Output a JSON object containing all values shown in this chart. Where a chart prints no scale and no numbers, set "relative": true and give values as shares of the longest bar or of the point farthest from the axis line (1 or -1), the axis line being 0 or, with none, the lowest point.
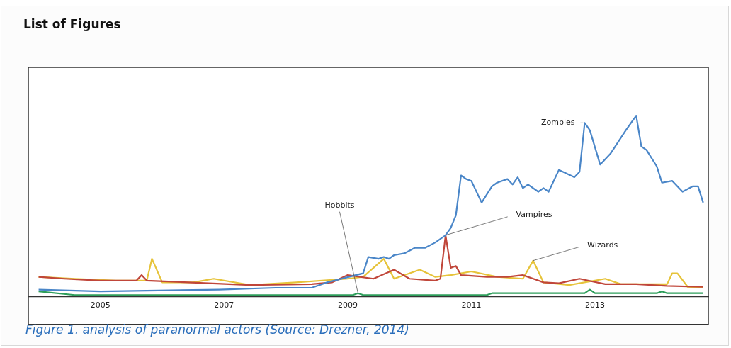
{
  "chart_data": {
    "type": "line",
    "title": "List of Figures",
    "annotations": [
      "Figure 1. analysis of paranormal actors (Source: Drezner, 2014)"
    ],
    "relative": true,
    "legend": false,
    "marker": "none",
    "line_style": "solid",
    "xlim": [
      "2003-11",
      "2014-11"
    ],
    "xticks": [
      "2005",
      "2007",
      "2009",
      "2011",
      "2013"
    ],
    "series": [
      {
        "name": "Zombies",
        "color": "#4a86c8",
        "x": [
          "2004-01",
          "2005-01",
          "2006-12",
          "2007-11",
          "2008-06",
          "2008-09",
          "2009-04",
          "2009-05",
          "2009-07",
          "2009-08",
          "2009-09",
          "2009-10",
          "2009-12",
          "2010-02",
          "2010-04",
          "2010-06",
          "2010-08",
          "2010-09",
          "2010-10",
          "2010-11",
          "2010-12",
          "2011-01",
          "2011-03",
          "2011-05",
          "2011-06",
          "2011-08",
          "2011-09",
          "2011-10",
          "2011-11",
          "2011-12",
          "2012-02",
          "2012-03",
          "2012-04",
          "2012-06",
          "2012-09",
          "2012-10",
          "2012-11",
          "2012-12",
          "2013-02",
          "2013-04",
          "2013-07",
          "2013-09",
          "2013-10",
          "2013-11",
          "2014-01",
          "2014-02",
          "2014-04",
          "2014-06",
          "2014-08",
          "2014-09",
          "2014-10"
        ],
        "values": [
          0.04,
          0.03,
          0.04,
          0.05,
          0.05,
          0.08,
          0.13,
          0.22,
          0.21,
          0.22,
          0.21,
          0.23,
          0.24,
          0.27,
          0.27,
          0.3,
          0.34,
          0.38,
          0.45,
          0.67,
          0.65,
          0.64,
          0.52,
          0.61,
          0.63,
          0.65,
          0.62,
          0.66,
          0.6,
          0.62,
          0.58,
          0.6,
          0.58,
          0.7,
          0.66,
          0.69,
          0.96,
          0.92,
          0.73,
          0.79,
          0.92,
          1,
          0.83,
          0.81,
          0.72,
          0.63,
          0.64,
          0.58,
          0.61,
          0.61,
          0.52
        ]
      },
      {
        "name": "Hobbits",
        "color": "#2e9e5b",
        "x": [
          "2004-01",
          "2004-08",
          "2009-02",
          "2009-03",
          "2009-04",
          "2011-04",
          "2011-05",
          "2012-11",
          "2012-12",
          "2013-01",
          "2014-01",
          "2014-02",
          "2014-03",
          "2014-10"
        ],
        "values": [
          0.03,
          0.01,
          0.01,
          0.02,
          0.01,
          0.01,
          0.02,
          0.02,
          0.04,
          0.02,
          0.02,
          0.03,
          0.02,
          0.02
        ]
      },
      {
        "name": "Vampires",
        "color": "#c0463a",
        "x": [
          "2004-01",
          "2004-06",
          "2005-01",
          "2005-08",
          "2005-09",
          "2005-10",
          "2006-06",
          "2007-06",
          "2008-06",
          "2008-10",
          "2009-01",
          "2009-06",
          "2009-10",
          "2010-01",
          "2010-06",
          "2010-07",
          "2010-08",
          "2010-09",
          "2010-10",
          "2010-11",
          "2011-04",
          "2011-08",
          "2011-11",
          "2012-03",
          "2012-06",
          "2012-10",
          "2013-03",
          "2013-09",
          "2014-03",
          "2014-10"
        ],
        "values": [
          0.11,
          0.1,
          0.09,
          0.09,
          0.12,
          0.09,
          0.08,
          0.065,
          0.07,
          0.08,
          0.12,
          0.1,
          0.15,
          0.1,
          0.09,
          0.1,
          0.34,
          0.16,
          0.17,
          0.12,
          0.11,
          0.11,
          0.12,
          0.08,
          0.075,
          0.1,
          0.07,
          0.07,
          0.06,
          0.055
        ]
      },
      {
        "name": "Wizards",
        "color": "#e6c33a",
        "x": [
          "2004-01",
          "2004-08",
          "2005-04",
          "2005-10",
          "2005-11",
          "2006-01",
          "2006-07",
          "2006-11",
          "2007-06",
          "2008-03",
          "2009-01",
          "2009-04",
          "2009-08",
          "2009-10",
          "2010-03",
          "2010-06",
          "2010-09",
          "2011-01",
          "2011-06",
          "2011-11",
          "2012-01",
          "2012-03",
          "2012-08",
          "2013-03",
          "2013-06",
          "2014-03",
          "2014-04",
          "2014-05",
          "2014-07",
          "2014-10"
        ],
        "values": [
          0.11,
          0.1,
          0.09,
          0.09,
          0.21,
          0.08,
          0.08,
          0.1,
          0.065,
          0.08,
          0.1,
          0.11,
          0.21,
          0.1,
          0.15,
          0.11,
          0.12,
          0.14,
          0.11,
          0.1,
          0.2,
          0.08,
          0.065,
          0.1,
          0.07,
          0.07,
          0.13,
          0.13,
          0.055,
          0.05
        ]
      }
    ]
  }
}
